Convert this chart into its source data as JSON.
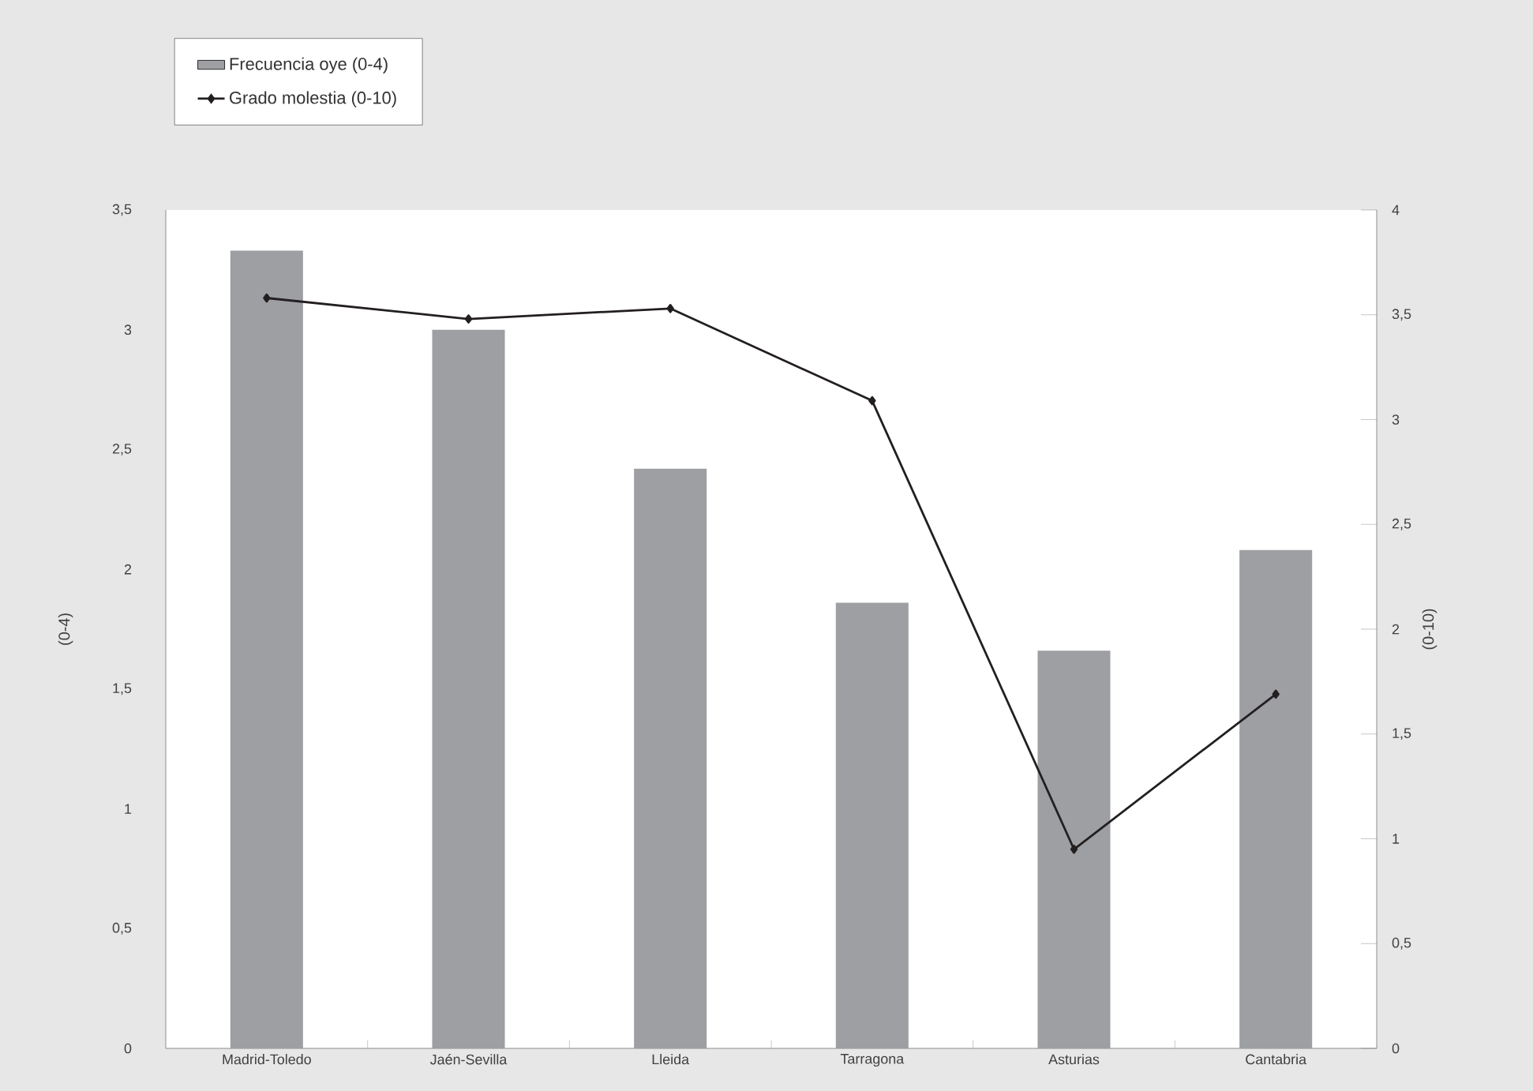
{
  "chart_data": {
    "type": "bar",
    "categories": [
      "Madrid-Toledo",
      "Jaén-Sevilla",
      "Lleida",
      "Tarragona",
      "Asturias",
      "Cantabria"
    ],
    "series": [
      {
        "name": "Frecuencia oye (0-4)",
        "color": "#9d9fa2",
        "values": [
          3.33,
          3.0,
          2.42,
          1.86,
          1.66,
          2.08
        ]
      },
      {
        "name": "Grado molestia (0-10)",
        "type": "line",
        "axis": "y2",
        "color": "#231f20",
        "marker": "diamond",
        "values": [
          3.58,
          3.48,
          3.53,
          3.09,
          0.95,
          1.69
        ]
      }
    ],
    "ylabel": "(0-4)",
    "y2label": "(0-10)",
    "ylim": [
      0,
      3.5
    ],
    "yticks": [
      0,
      {
        "value": 0.5,
        "label": "0,5"
      },
      1,
      {
        "value": 1.5,
        "label": "1,5"
      },
      2,
      {
        "value": 2.5,
        "label": "2,5"
      },
      3,
      {
        "value": 3.5,
        "label": "3,5"
      }
    ],
    "y2lim": [
      0,
      4
    ],
    "y2ticks": [
      0,
      {
        "value": 0.5,
        "label": "0,5"
      },
      1,
      {
        "value": 1.5,
        "label": "1,5"
      },
      2,
      {
        "value": 2.5,
        "label": "2,5"
      },
      3,
      {
        "value": 3.5,
        "label": "3,5"
      },
      4
    ],
    "grid": false,
    "legend": "top left",
    "line_style": "solid"
  }
}
